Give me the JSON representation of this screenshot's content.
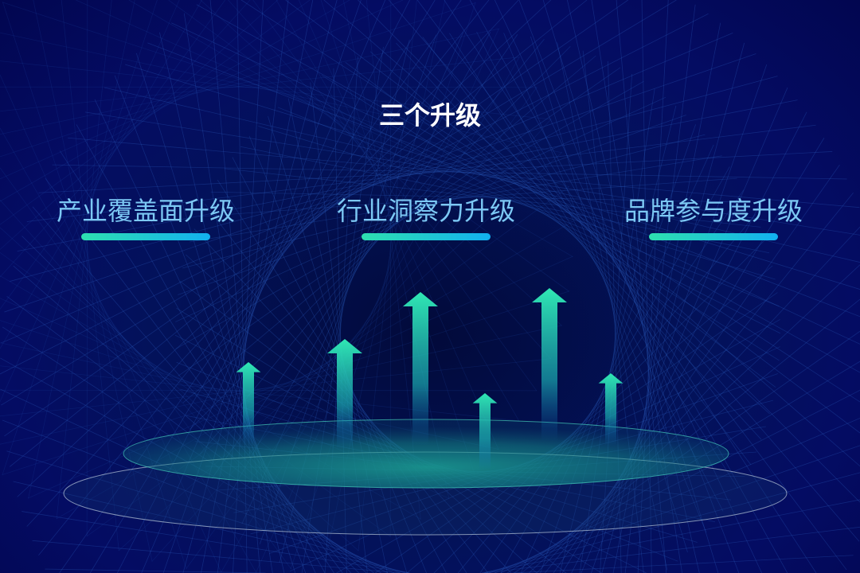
{
  "title": "三个升级",
  "items": [
    {
      "label": "产业覆盖面升级"
    },
    {
      "label": "行业洞察力升级"
    },
    {
      "label": "品牌参与度升级"
    }
  ],
  "colors": {
    "background": "#040c63",
    "accent_start": "#2ee0b0",
    "accent_end": "#12b0f0",
    "label": "#7cc8f4"
  }
}
